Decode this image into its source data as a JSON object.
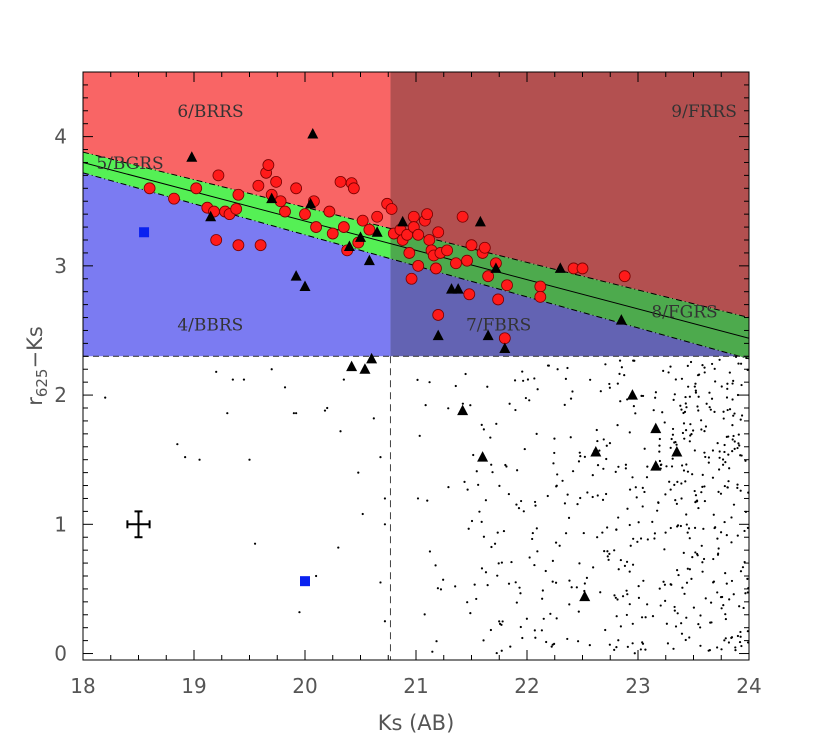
{
  "chart_data": {
    "type": "scatter",
    "xlabel": "Ks (AB)",
    "ylabel_main": "r",
    "ylabel_sub": "625",
    "ylabel_rest": "−Ks",
    "xlim": [
      18,
      24
    ],
    "ylim": [
      -0.05,
      4.5
    ],
    "x_ticks": [
      18,
      19,
      20,
      21,
      22,
      23,
      24
    ],
    "y_ticks": [
      0,
      1,
      2,
      3,
      4
    ],
    "grid": false,
    "colors": {
      "brrs": "#f96565",
      "frrs": "#b35050",
      "bbrs": "#7b7bf2",
      "fbrs": "#6363b3",
      "bgrs": "#55f055",
      "fgrs": "#4daa4d",
      "red_point": "#ff1a1a",
      "blue_square": "#0a22f0"
    },
    "regions": [
      {
        "label": "6/BRRS",
        "x": 18.85,
        "y": 4.15
      },
      {
        "label": "9/FRRS",
        "x": 23.3,
        "y": 4.15
      },
      {
        "label": "5/BGRS",
        "x": 18.12,
        "y": 3.75
      },
      {
        "label": "4/BBRS",
        "x": 18.85,
        "y": 2.5
      },
      {
        "label": "7/FBRS",
        "x": 21.45,
        "y": 2.5
      },
      {
        "label": "8/FGRS",
        "x": 23.12,
        "y": 2.6
      }
    ],
    "thresholds": {
      "color_cut": 2.3,
      "mag_cut": 20.77
    },
    "band": {
      "upper": [
        [
          18,
          3.88
        ],
        [
          24,
          2.6
        ]
      ],
      "center": [
        [
          18,
          3.8
        ],
        [
          24,
          2.44
        ]
      ],
      "lower": [
        [
          18,
          3.72
        ],
        [
          24,
          2.28
        ]
      ]
    },
    "error_bar": {
      "x": 18.5,
      "y": 1.0,
      "xerr": 0.1,
      "yerr": 0.1
    },
    "series": [
      {
        "marker": "circle",
        "points": [
          [
            18.6,
            3.6
          ],
          [
            18.82,
            3.52
          ],
          [
            19.02,
            3.6
          ],
          [
            19.12,
            3.45
          ],
          [
            19.18,
            3.42
          ],
          [
            19.22,
            3.7
          ],
          [
            19.2,
            3.2
          ],
          [
            19.28,
            3.42
          ],
          [
            19.32,
            3.4
          ],
          [
            19.38,
            3.44
          ],
          [
            19.4,
            3.55
          ],
          [
            19.4,
            3.16
          ],
          [
            19.58,
            3.62
          ],
          [
            19.6,
            3.16
          ],
          [
            19.65,
            3.72
          ],
          [
            19.67,
            3.78
          ],
          [
            19.7,
            3.55
          ],
          [
            19.74,
            3.65
          ],
          [
            19.78,
            3.5
          ],
          [
            19.82,
            3.42
          ],
          [
            19.92,
            3.6
          ],
          [
            20.0,
            3.4
          ],
          [
            20.08,
            3.5
          ],
          [
            20.1,
            3.3
          ],
          [
            20.22,
            3.42
          ],
          [
            20.25,
            3.25
          ],
          [
            20.32,
            3.65
          ],
          [
            20.35,
            3.3
          ],
          [
            20.38,
            3.12
          ],
          [
            20.42,
            3.64
          ],
          [
            20.44,
            3.6
          ],
          [
            20.48,
            3.18
          ],
          [
            20.52,
            3.35
          ],
          [
            20.58,
            3.28
          ],
          [
            20.65,
            3.38
          ],
          [
            20.74,
            3.48
          ],
          [
            20.78,
            3.44
          ],
          [
            20.8,
            3.25
          ],
          [
            20.86,
            3.28
          ],
          [
            20.88,
            3.2
          ],
          [
            20.92,
            3.24
          ],
          [
            20.94,
            3.1
          ],
          [
            20.96,
            2.9
          ],
          [
            20.98,
            3.38
          ],
          [
            20.98,
            3.3
          ],
          [
            21.02,
            3.24
          ],
          [
            21.02,
            3.0
          ],
          [
            21.08,
            3.35
          ],
          [
            21.1,
            3.4
          ],
          [
            21.12,
            3.2
          ],
          [
            21.14,
            3.12
          ],
          [
            21.16,
            3.08
          ],
          [
            21.18,
            2.98
          ],
          [
            21.2,
            3.26
          ],
          [
            21.22,
            3.1
          ],
          [
            21.2,
            2.62
          ],
          [
            21.28,
            3.12
          ],
          [
            21.36,
            3.02
          ],
          [
            21.42,
            3.38
          ],
          [
            21.46,
            3.04
          ],
          [
            21.48,
            2.78
          ],
          [
            21.5,
            3.16
          ],
          [
            21.6,
            3.1
          ],
          [
            21.62,
            3.14
          ],
          [
            21.65,
            2.92
          ],
          [
            21.72,
            3.02
          ],
          [
            21.74,
            2.74
          ],
          [
            21.8,
            2.44
          ],
          [
            21.82,
            2.85
          ],
          [
            22.12,
            2.84
          ],
          [
            22.12,
            2.76
          ],
          [
            22.42,
            2.98
          ],
          [
            22.5,
            2.98
          ],
          [
            22.88,
            2.92
          ]
        ]
      },
      {
        "marker": "triangle",
        "points": [
          [
            18.98,
            3.84
          ],
          [
            19.15,
            3.38
          ],
          [
            19.7,
            3.52
          ],
          [
            19.92,
            2.92
          ],
          [
            20.0,
            2.84
          ],
          [
            20.07,
            4.02
          ],
          [
            20.05,
            3.48
          ],
          [
            20.42,
            2.22
          ],
          [
            20.4,
            3.15
          ],
          [
            20.5,
            3.22
          ],
          [
            20.54,
            2.2
          ],
          [
            20.58,
            3.04
          ],
          [
            20.6,
            2.28
          ],
          [
            20.65,
            3.26
          ],
          [
            20.88,
            3.34
          ],
          [
            21.2,
            2.46
          ],
          [
            21.32,
            2.82
          ],
          [
            21.38,
            2.82
          ],
          [
            21.42,
            1.88
          ],
          [
            21.58,
            3.34
          ],
          [
            21.6,
            1.52
          ],
          [
            21.65,
            2.46
          ],
          [
            21.8,
            2.36
          ],
          [
            22.3,
            2.98
          ],
          [
            22.52,
            0.44
          ],
          [
            22.62,
            1.56
          ],
          [
            22.85,
            2.58
          ],
          [
            22.95,
            2.0
          ],
          [
            23.16,
            1.74
          ],
          [
            23.16,
            1.45
          ],
          [
            23.35,
            1.56
          ],
          [
            21.72,
            2.98
          ]
        ]
      },
      {
        "marker": "square",
        "points": [
          [
            18.55,
            3.26
          ],
          [
            20.0,
            0.56
          ]
        ]
      },
      {
        "marker": "dot",
        "seed": 7,
        "count": 560,
        "fill_x_range": [
          21.0,
          24.0
        ],
        "fill_y_range": [
          0.0,
          2.3
        ],
        "extra_points": [
          [
            18.2,
            1.98
          ],
          [
            18.85,
            1.62
          ],
          [
            18.92,
            1.52
          ],
          [
            19.05,
            1.5
          ],
          [
            19.2,
            2.18
          ],
          [
            19.35,
            2.12
          ],
          [
            19.45,
            2.12
          ],
          [
            19.5,
            1.5
          ],
          [
            19.7,
            2.2
          ],
          [
            19.82,
            2.06
          ],
          [
            19.9,
            1.86
          ],
          [
            19.92,
            1.86
          ],
          [
            20.18,
            1.88
          ],
          [
            20.2,
            1.9
          ],
          [
            20.32,
            1.72
          ],
          [
            20.35,
            2.12
          ],
          [
            20.48,
            1.4
          ],
          [
            20.52,
            1.08
          ],
          [
            20.62,
            1.82
          ],
          [
            20.68,
            1.52
          ],
          [
            20.72,
            1.2
          ],
          [
            20.72,
            1.0
          ],
          [
            19.55,
            0.85
          ],
          [
            19.95,
            0.32
          ],
          [
            20.72,
            0.25
          ],
          [
            20.1,
            0.6
          ],
          [
            19.3,
            1.86
          ],
          [
            20.3,
            0.82
          ],
          [
            20.68,
            0.55
          ]
        ]
      }
    ]
  }
}
